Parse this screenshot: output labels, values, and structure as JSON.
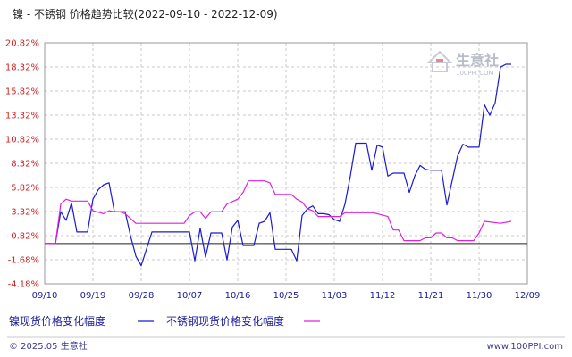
{
  "title": "镍 - 不锈钢 价格趋势比较(2022-09-10 - 2022-12-09)",
  "footer": {
    "left": "© 2025.05 生意社",
    "right": "www.100PPI.com"
  },
  "watermark": {
    "brand": "生意社",
    "site": "100PPI.COM"
  },
  "colors": {
    "series1": "#1a1ad0",
    "series2": "#dd22dd",
    "grid": "#c8c8c8",
    "axis_tick_y": "#cc2222",
    "axis_tick_x": "#1a1a99",
    "zero_line": "#222222"
  },
  "chart_data": {
    "type": "line",
    "title": "镍 - 不锈钢 价格趋势比较(2022-09-10 - 2022-12-09)",
    "xlabel": "",
    "ylabel": "",
    "ylim": [
      -4.18,
      20.82
    ],
    "yticks": [
      "20.82%",
      "18.32%",
      "15.82%",
      "13.32%",
      "10.82%",
      "8.32%",
      "5.82%",
      "3.32%",
      "0.82%",
      "-1.68%",
      "-4.18%"
    ],
    "ytick_values": [
      20.82,
      18.32,
      15.82,
      13.32,
      10.82,
      8.32,
      5.82,
      3.32,
      0.82,
      -1.68,
      -4.18
    ],
    "x_start": "2022-09-10",
    "x_end": "2022-12-09",
    "xticks": [
      {
        "label": "09/10",
        "date": "2022-09-10"
      },
      {
        "label": "09/19",
        "date": "2022-09-19"
      },
      {
        "label": "09/28",
        "date": "2022-09-28"
      },
      {
        "label": "10/07",
        "date": "2022-10-07"
      },
      {
        "label": "10/16",
        "date": "2022-10-16"
      },
      {
        "label": "10/25",
        "date": "2022-10-25"
      },
      {
        "label": "11/03",
        "date": "2022-11-03"
      },
      {
        "label": "11/12",
        "date": "2022-11-12"
      },
      {
        "label": "11/21",
        "date": "2022-11-21"
      },
      {
        "label": "11/30",
        "date": "2022-11-30"
      },
      {
        "label": "12/09",
        "date": "2022-12-09"
      }
    ],
    "grid": true,
    "legend_position": "bottom-left",
    "series": [
      {
        "name": "镍现货价格变化幅度",
        "color": "#1a1ad0",
        "points": [
          [
            "2022-09-10",
            0.0
          ],
          [
            "2022-09-12",
            0.0
          ],
          [
            "2022-09-13",
            3.3
          ],
          [
            "2022-09-14",
            2.4
          ],
          [
            "2022-09-15",
            4.2
          ],
          [
            "2022-09-16",
            1.2
          ],
          [
            "2022-09-18",
            1.2
          ],
          [
            "2022-09-19",
            4.6
          ],
          [
            "2022-09-20",
            5.6
          ],
          [
            "2022-09-21",
            6.1
          ],
          [
            "2022-09-22",
            6.3
          ],
          [
            "2022-09-23",
            3.3
          ],
          [
            "2022-09-25",
            3.3
          ],
          [
            "2022-09-26",
            0.8
          ],
          [
            "2022-09-27",
            -1.3
          ],
          [
            "2022-09-28",
            -2.3
          ],
          [
            "2022-09-30",
            1.2
          ],
          [
            "2022-10-05",
            1.2
          ],
          [
            "2022-10-06",
            1.2
          ],
          [
            "2022-10-07",
            1.2
          ],
          [
            "2022-10-08",
            -1.8
          ],
          [
            "2022-10-09",
            1.6
          ],
          [
            "2022-10-10",
            -1.4
          ],
          [
            "2022-10-11",
            1.1
          ],
          [
            "2022-10-13",
            1.1
          ],
          [
            "2022-10-14",
            -1.7
          ],
          [
            "2022-10-15",
            1.7
          ],
          [
            "2022-10-16",
            2.4
          ],
          [
            "2022-10-17",
            -0.2
          ],
          [
            "2022-10-19",
            -0.2
          ],
          [
            "2022-10-20",
            2.1
          ],
          [
            "2022-10-21",
            2.3
          ],
          [
            "2022-10-22",
            3.2
          ],
          [
            "2022-10-23",
            -0.6
          ],
          [
            "2022-10-26",
            -0.6
          ],
          [
            "2022-10-27",
            -1.8
          ],
          [
            "2022-10-28",
            2.9
          ],
          [
            "2022-10-29",
            3.6
          ],
          [
            "2022-10-30",
            3.9
          ],
          [
            "2022-10-31",
            3.1
          ],
          [
            "2022-11-01",
            3.1
          ],
          [
            "2022-11-02",
            3.0
          ],
          [
            "2022-11-03",
            2.5
          ],
          [
            "2022-11-04",
            2.3
          ],
          [
            "2022-11-05",
            4.1
          ],
          [
            "2022-11-06",
            7.0
          ],
          [
            "2022-11-07",
            10.4
          ],
          [
            "2022-11-09",
            10.4
          ],
          [
            "2022-11-10",
            7.6
          ],
          [
            "2022-11-11",
            10.2
          ],
          [
            "2022-11-12",
            10.0
          ],
          [
            "2022-11-13",
            7.0
          ],
          [
            "2022-11-14",
            7.3
          ],
          [
            "2022-11-16",
            7.3
          ],
          [
            "2022-11-17",
            5.3
          ],
          [
            "2022-11-18",
            7.0
          ],
          [
            "2022-11-19",
            8.1
          ],
          [
            "2022-11-20",
            7.7
          ],
          [
            "2022-11-21",
            7.6
          ],
          [
            "2022-11-23",
            7.6
          ],
          [
            "2022-11-24",
            4.0
          ],
          [
            "2022-11-26",
            9.1
          ],
          [
            "2022-11-27",
            10.3
          ],
          [
            "2022-11-28",
            10.0
          ],
          [
            "2022-11-30",
            10.0
          ],
          [
            "2022-12-01",
            14.4
          ],
          [
            "2022-12-02",
            13.3
          ],
          [
            "2022-12-03",
            14.6
          ],
          [
            "2022-12-04",
            18.3
          ],
          [
            "2022-12-05",
            18.6
          ],
          [
            "2022-12-06",
            18.6
          ]
        ]
      },
      {
        "name": "不锈钢现货价格变化幅度",
        "color": "#dd22dd",
        "points": [
          [
            "2022-09-10",
            0.0
          ],
          [
            "2022-09-12",
            0.0
          ],
          [
            "2022-09-13",
            4.1
          ],
          [
            "2022-09-14",
            4.6
          ],
          [
            "2022-09-15",
            4.4
          ],
          [
            "2022-09-18",
            4.4
          ],
          [
            "2022-09-19",
            3.4
          ],
          [
            "2022-09-21",
            3.1
          ],
          [
            "2022-09-22",
            3.4
          ],
          [
            "2022-09-23",
            3.3
          ],
          [
            "2022-09-24",
            3.3
          ],
          [
            "2022-09-25",
            3.1
          ],
          [
            "2022-09-26",
            2.6
          ],
          [
            "2022-09-27",
            2.1
          ],
          [
            "2022-10-06",
            2.1
          ],
          [
            "2022-10-07",
            2.9
          ],
          [
            "2022-10-08",
            3.3
          ],
          [
            "2022-10-09",
            3.3
          ],
          [
            "2022-10-10",
            2.6
          ],
          [
            "2022-10-11",
            3.3
          ],
          [
            "2022-10-13",
            3.3
          ],
          [
            "2022-10-14",
            4.1
          ],
          [
            "2022-10-16",
            4.6
          ],
          [
            "2022-10-17",
            5.3
          ],
          [
            "2022-10-18",
            6.5
          ],
          [
            "2022-10-21",
            6.5
          ],
          [
            "2022-10-22",
            6.3
          ],
          [
            "2022-10-23",
            5.1
          ],
          [
            "2022-10-26",
            5.1
          ],
          [
            "2022-10-27",
            4.6
          ],
          [
            "2022-10-28",
            4.3
          ],
          [
            "2022-10-29",
            3.6
          ],
          [
            "2022-10-30",
            3.4
          ],
          [
            "2022-10-31",
            2.8
          ],
          [
            "2022-11-04",
            2.8
          ],
          [
            "2022-11-05",
            3.2
          ],
          [
            "2022-11-10",
            3.2
          ],
          [
            "2022-11-11",
            3.1
          ],
          [
            "2022-11-13",
            2.8
          ],
          [
            "2022-11-14",
            1.4
          ],
          [
            "2022-11-15",
            1.4
          ],
          [
            "2022-11-16",
            0.3
          ],
          [
            "2022-11-19",
            0.3
          ],
          [
            "2022-11-20",
            0.6
          ],
          [
            "2022-11-21",
            0.6
          ],
          [
            "2022-11-22",
            1.1
          ],
          [
            "2022-11-23",
            1.1
          ],
          [
            "2022-11-24",
            0.6
          ],
          [
            "2022-11-25",
            0.6
          ],
          [
            "2022-11-26",
            0.3
          ],
          [
            "2022-11-29",
            0.3
          ],
          [
            "2022-11-30",
            1.1
          ],
          [
            "2022-12-01",
            2.3
          ],
          [
            "2022-12-04",
            2.1
          ],
          [
            "2022-12-06",
            2.3
          ]
        ]
      }
    ]
  }
}
